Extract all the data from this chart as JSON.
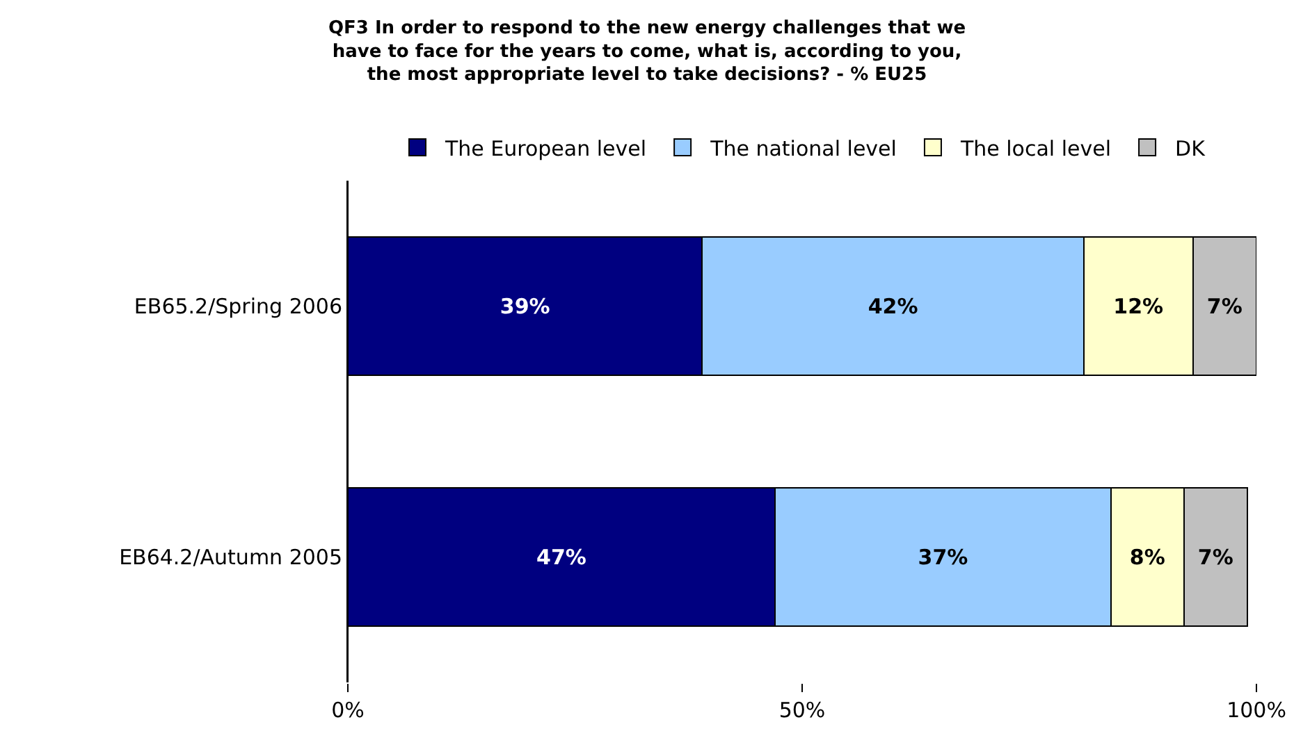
{
  "chart_data": {
    "type": "bar",
    "orientation": "horizontal",
    "stacked": true,
    "title": "QF3 In order to respond to the new energy challenges that we have to face for the years to come, what is, according to you, the most appropriate level to take decisions? - % EU25",
    "categories": [
      "EB65.2/Spring 2006",
      "EB64.2/Autumn 2005"
    ],
    "series": [
      {
        "name": "The European level",
        "color": "#000080",
        "values": [
          39,
          47
        ],
        "value_labels": [
          "39%",
          "47%"
        ]
      },
      {
        "name": "The national level",
        "color": "#99ccff",
        "values": [
          42,
          37
        ],
        "value_labels": [
          "42%",
          "37%"
        ]
      },
      {
        "name": "The local level",
        "color": "#ffffcc",
        "values": [
          12,
          8
        ],
        "value_labels": [
          "12%",
          "8%"
        ]
      },
      {
        "name": "DK",
        "color": "#c0c0c0",
        "values": [
          7,
          7
        ],
        "value_labels": [
          "7%",
          "7%"
        ]
      }
    ],
    "xlim": [
      0,
      100
    ],
    "xticks": [
      {
        "value": 0,
        "label": "0%"
      },
      {
        "value": 50,
        "label": "50%"
      },
      {
        "value": 100,
        "label": "100%"
      }
    ],
    "grid": false,
    "legend": "top"
  }
}
